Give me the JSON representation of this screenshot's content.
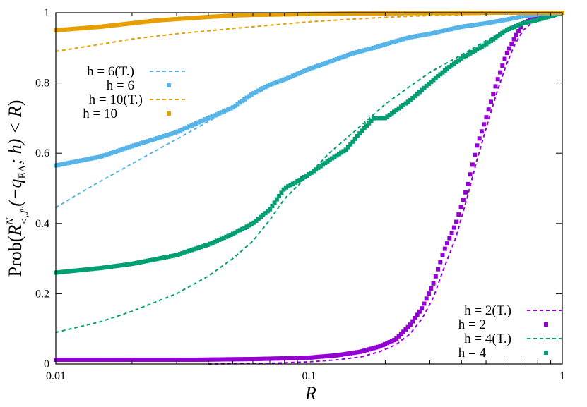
{
  "chart_data": {
    "type": "line",
    "title": "",
    "xlabel": "R",
    "ylabel": "Prob(R^N_{<,J^o}(−q_EA; h) < R)",
    "ylabel_parts": {
      "prob": "Prob(",
      "R": "R",
      "sup": "N",
      "sub": "<,J",
      "subsup": "o",
      "mid": "(−q",
      "qsub": "EA",
      "semi": "; h) < ",
      "R2": "R",
      "close": ")"
    },
    "xscale": "log",
    "xlim": [
      0.01,
      1
    ],
    "ylim": [
      0,
      1
    ],
    "xticks": [
      0.01,
      0.1,
      1
    ],
    "xtick_labels": [
      "0.01",
      "0.1",
      "1"
    ],
    "yticks": [
      0,
      0.2,
      0.4,
      0.6,
      0.8,
      1
    ],
    "ytick_labels": [
      "0",
      "0.2",
      "0.4",
      "0.6",
      "0.8",
      "1"
    ],
    "grid": false,
    "legend_top_left": [
      {
        "label": "h = 6(T.)",
        "style": "dashed",
        "series": "h6T"
      },
      {
        "label": "h = 6",
        "style": "points",
        "series": "h6"
      },
      {
        "label": "h = 10(T.)",
        "style": "dashed",
        "series": "h10T"
      },
      {
        "label": "h = 10",
        "style": "points",
        "series": "h10"
      }
    ],
    "legend_bottom_right": [
      {
        "label": "h = 2(T.)",
        "style": "dashed",
        "series": "h2T"
      },
      {
        "label": "h = 2",
        "style": "points",
        "series": "h2"
      },
      {
        "label": "h = 4(T.)",
        "style": "dashed",
        "series": "h4T"
      },
      {
        "label": "h = 4",
        "style": "points",
        "series": "h4"
      }
    ],
    "series": [
      {
        "id": "h2",
        "color": "#9400d3",
        "style": "points",
        "points": [
          [
            0.01,
            0.012
          ],
          [
            0.014,
            0.012
          ],
          [
            0.018,
            0.012
          ],
          [
            0.023,
            0.012
          ],
          [
            0.035,
            0.012
          ],
          [
            0.045,
            0.013
          ],
          [
            0.06,
            0.014
          ],
          [
            0.08,
            0.016
          ],
          [
            0.1,
            0.018
          ],
          [
            0.13,
            0.025
          ],
          [
            0.16,
            0.035
          ],
          [
            0.19,
            0.05
          ],
          [
            0.22,
            0.07
          ],
          [
            0.25,
            0.11
          ],
          [
            0.28,
            0.16
          ],
          [
            0.31,
            0.23
          ],
          [
            0.34,
            0.32
          ],
          [
            0.38,
            0.4
          ],
          [
            0.42,
            0.5
          ],
          [
            0.46,
            0.62
          ],
          [
            0.5,
            0.7
          ],
          [
            0.55,
            0.8
          ],
          [
            0.6,
            0.88
          ],
          [
            0.65,
            0.93
          ],
          [
            0.7,
            0.97
          ],
          [
            0.8,
            0.99
          ],
          [
            0.9,
            1.0
          ],
          [
            1.0,
            1.0
          ]
        ]
      },
      {
        "id": "h2T",
        "color": "#9400d3",
        "style": "dashed",
        "points": [
          [
            0.04,
            0.0
          ],
          [
            0.07,
            0.002
          ],
          [
            0.1,
            0.006
          ],
          [
            0.13,
            0.012
          ],
          [
            0.16,
            0.02
          ],
          [
            0.19,
            0.035
          ],
          [
            0.22,
            0.055
          ],
          [
            0.25,
            0.085
          ],
          [
            0.28,
            0.13
          ],
          [
            0.31,
            0.19
          ],
          [
            0.34,
            0.27
          ],
          [
            0.38,
            0.36
          ],
          [
            0.42,
            0.47
          ],
          [
            0.46,
            0.58
          ],
          [
            0.5,
            0.67
          ],
          [
            0.55,
            0.77
          ],
          [
            0.6,
            0.85
          ],
          [
            0.65,
            0.91
          ],
          [
            0.7,
            0.95
          ],
          [
            0.8,
            0.985
          ],
          [
            0.9,
            0.997
          ],
          [
            1.0,
            1.0
          ]
        ]
      },
      {
        "id": "h4",
        "color": "#009e73",
        "style": "points",
        "points": [
          [
            0.01,
            0.26
          ],
          [
            0.015,
            0.273
          ],
          [
            0.02,
            0.285
          ],
          [
            0.03,
            0.31
          ],
          [
            0.04,
            0.34
          ],
          [
            0.05,
            0.37
          ],
          [
            0.06,
            0.4
          ],
          [
            0.07,
            0.44
          ],
          [
            0.08,
            0.5
          ],
          [
            0.09,
            0.52
          ],
          [
            0.1,
            0.54
          ],
          [
            0.12,
            0.58
          ],
          [
            0.14,
            0.61
          ],
          [
            0.16,
            0.66
          ],
          [
            0.18,
            0.7
          ],
          [
            0.2,
            0.7
          ],
          [
            0.25,
            0.75
          ],
          [
            0.3,
            0.8
          ],
          [
            0.35,
            0.84
          ],
          [
            0.4,
            0.87
          ],
          [
            0.5,
            0.91
          ],
          [
            0.6,
            0.95
          ],
          [
            0.7,
            0.97
          ],
          [
            0.8,
            0.98
          ],
          [
            0.9,
            0.99
          ],
          [
            1.0,
            1.0
          ]
        ]
      },
      {
        "id": "h4T",
        "color": "#009e73",
        "style": "dashed",
        "points": [
          [
            0.01,
            0.09
          ],
          [
            0.015,
            0.12
          ],
          [
            0.02,
            0.15
          ],
          [
            0.03,
            0.2
          ],
          [
            0.04,
            0.25
          ],
          [
            0.05,
            0.3
          ],
          [
            0.06,
            0.35
          ],
          [
            0.07,
            0.41
          ],
          [
            0.08,
            0.47
          ],
          [
            0.1,
            0.54
          ],
          [
            0.12,
            0.6
          ],
          [
            0.15,
            0.66
          ],
          [
            0.18,
            0.71
          ],
          [
            0.2,
            0.74
          ],
          [
            0.25,
            0.79
          ],
          [
            0.3,
            0.83
          ],
          [
            0.4,
            0.88
          ],
          [
            0.5,
            0.92
          ],
          [
            0.6,
            0.95
          ],
          [
            0.7,
            0.97
          ],
          [
            0.8,
            0.985
          ],
          [
            1.0,
            1.0
          ]
        ]
      },
      {
        "id": "h6",
        "color": "#56b4e9",
        "style": "points",
        "points": [
          [
            0.01,
            0.565
          ],
          [
            0.015,
            0.59
          ],
          [
            0.02,
            0.62
          ],
          [
            0.03,
            0.66
          ],
          [
            0.04,
            0.7
          ],
          [
            0.05,
            0.73
          ],
          [
            0.06,
            0.77
          ],
          [
            0.07,
            0.795
          ],
          [
            0.08,
            0.81
          ],
          [
            0.1,
            0.84
          ],
          [
            0.12,
            0.86
          ],
          [
            0.15,
            0.885
          ],
          [
            0.18,
            0.9
          ],
          [
            0.2,
            0.91
          ],
          [
            0.25,
            0.93
          ],
          [
            0.3,
            0.94
          ],
          [
            0.4,
            0.96
          ],
          [
            0.5,
            0.97
          ],
          [
            0.6,
            0.98
          ],
          [
            0.7,
            0.99
          ],
          [
            0.8,
            0.995
          ],
          [
            1.0,
            1.0
          ]
        ]
      },
      {
        "id": "h6T",
        "color": "#56b4e9",
        "style": "dashed",
        "points": [
          [
            0.01,
            0.445
          ],
          [
            0.012,
            0.48
          ],
          [
            0.015,
            0.52
          ],
          [
            0.02,
            0.57
          ],
          [
            0.03,
            0.64
          ],
          [
            0.04,
            0.69
          ],
          [
            0.05,
            0.73
          ],
          [
            0.06,
            0.765
          ],
          [
            0.07,
            0.79
          ],
          [
            0.08,
            0.81
          ],
          [
            0.1,
            0.835
          ],
          [
            0.15,
            0.88
          ],
          [
            0.2,
            0.91
          ],
          [
            0.3,
            0.94
          ],
          [
            0.4,
            0.96
          ],
          [
            0.5,
            0.97
          ],
          [
            0.6,
            0.98
          ],
          [
            0.7,
            0.987
          ],
          [
            1.0,
            1.0
          ]
        ]
      },
      {
        "id": "h10",
        "color": "#e69f00",
        "style": "points",
        "points": [
          [
            0.01,
            0.95
          ],
          [
            0.015,
            0.96
          ],
          [
            0.02,
            0.97
          ],
          [
            0.025,
            0.978
          ],
          [
            0.03,
            0.982
          ],
          [
            0.04,
            0.988
          ],
          [
            0.05,
            0.992
          ],
          [
            0.06,
            0.994
          ],
          [
            0.08,
            0.995
          ],
          [
            0.09,
            0.996
          ],
          [
            0.12,
            0.997
          ],
          [
            0.15,
            0.998
          ],
          [
            0.17,
            0.998
          ],
          [
            0.3,
            0.999
          ],
          [
            0.35,
            0.999
          ],
          [
            0.55,
            1.0
          ],
          [
            0.7,
            1.0
          ],
          [
            1.0,
            1.0
          ]
        ]
      },
      {
        "id": "h10T",
        "color": "#e69f00",
        "style": "dashed",
        "points": [
          [
            0.01,
            0.89
          ],
          [
            0.015,
            0.91
          ],
          [
            0.02,
            0.925
          ],
          [
            0.03,
            0.94
          ],
          [
            0.05,
            0.955
          ],
          [
            0.08,
            0.968
          ],
          [
            0.1,
            0.974
          ],
          [
            0.15,
            0.982
          ],
          [
            0.2,
            0.987
          ],
          [
            0.3,
            0.992
          ],
          [
            0.5,
            0.996
          ],
          [
            0.7,
            0.998
          ],
          [
            1.0,
            1.0
          ]
        ]
      }
    ]
  }
}
